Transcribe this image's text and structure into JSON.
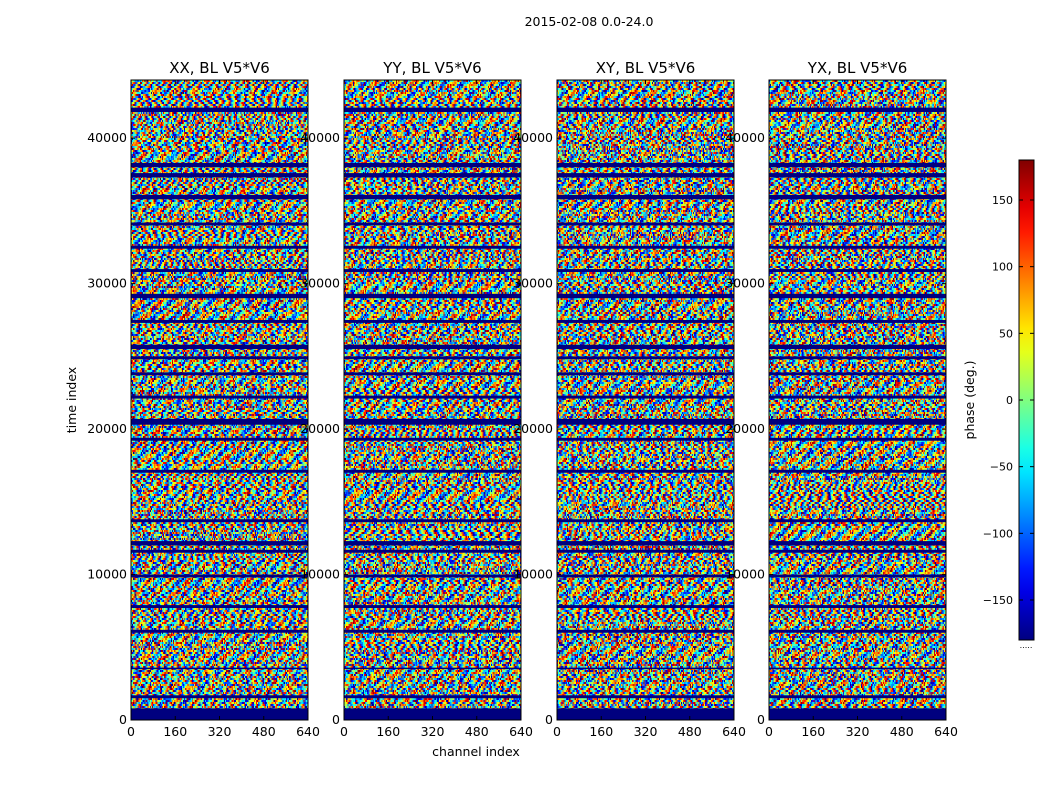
{
  "chart_data": {
    "type": "heatmap",
    "suptitle": "2015-02-08 0.0-24.0",
    "xlabel": "channel index",
    "ylabel": "time index",
    "xlim": [
      0,
      640
    ],
    "ylim": [
      0,
      44000
    ],
    "xticks": [
      0,
      160,
      320,
      480,
      640
    ],
    "xtick_labels": [
      "0",
      "160",
      "320",
      "480",
      "640"
    ],
    "yticks": [
      0,
      10000,
      20000,
      30000,
      40000
    ],
    "ytick_labels": [
      "0",
      "10000",
      "20000",
      "30000",
      "40000"
    ],
    "colormap": "jet",
    "panels": [
      {
        "title": "XX, BL V5*V6"
      },
      {
        "title": "YY, BL V5*V6"
      },
      {
        "title": "XY, BL V5*V6"
      },
      {
        "title": "YX, BL V5*V6"
      }
    ],
    "colorbar": {
      "label": "phase (deg.)",
      "range": [
        -180,
        180
      ],
      "ticks": [
        150,
        100,
        50,
        0,
        -50,
        -100,
        -150
      ],
      "tick_labels": [
        "150",
        "100",
        "50",
        "0",
        "−50",
        "−100",
        "−150"
      ]
    },
    "colorbar_foot": ".....",
    "flagged_time_ranges": [
      [
        0,
        800
      ],
      [
        41800,
        42100
      ],
      [
        38000,
        38300
      ],
      [
        37300,
        37600
      ],
      [
        35800,
        36100
      ],
      [
        34000,
        34200
      ],
      [
        32400,
        32600
      ],
      [
        30800,
        31000
      ],
      [
        29000,
        29300
      ],
      [
        27300,
        27500
      ],
      [
        25500,
        25800
      ],
      [
        24800,
        25000
      ],
      [
        23700,
        23900
      ],
      [
        22100,
        22300
      ],
      [
        20300,
        20700
      ],
      [
        19200,
        19400
      ],
      [
        17000,
        17200
      ],
      [
        13600,
        13800
      ],
      [
        12000,
        12300
      ],
      [
        11500,
        11700
      ],
      [
        9800,
        10000
      ],
      [
        7700,
        7900
      ],
      [
        6000,
        6200
      ],
      [
        3500,
        3600
      ],
      [
        1500,
        1700
      ]
    ]
  }
}
